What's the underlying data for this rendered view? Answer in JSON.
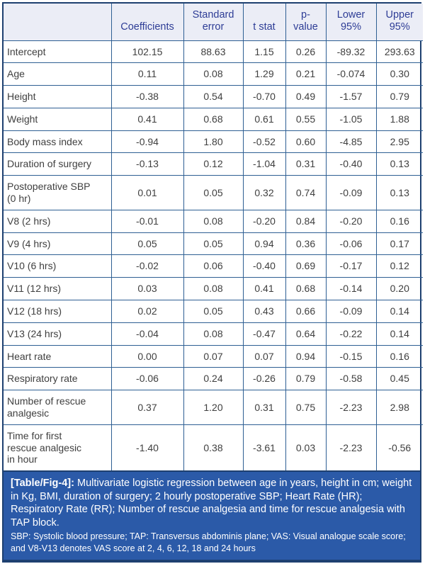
{
  "colors": {
    "inner_border": "#2e5f93",
    "outer_border": "#1e4070",
    "header_bg": "#ebedf6",
    "header_text": "#2e3d96",
    "body_text": "#3f3f3f",
    "caption_bg": "#2b5aa8",
    "caption_text": "#ffffff"
  },
  "table": {
    "corner_label": "",
    "headers": [
      "Coefficients",
      "Standard\nerror",
      "t stat",
      "p-\nvalue",
      "Lower\n95%",
      "Upper\n95%"
    ],
    "rows": [
      {
        "label": "Intercept",
        "values": [
          "102.15",
          "88.63",
          "1.15",
          "0.26",
          "-89.32",
          "293.63"
        ]
      },
      {
        "label": "Age",
        "values": [
          "0.11",
          "0.08",
          "1.29",
          "0.21",
          "-0.074",
          "0.30"
        ]
      },
      {
        "label": "Height",
        "values": [
          "-0.38",
          "0.54",
          "-0.70",
          "0.49",
          "-1.57",
          "0.79"
        ]
      },
      {
        "label": "Weight",
        "values": [
          "0.41",
          "0.68",
          "0.61",
          "0.55",
          "-1.05",
          "1.88"
        ]
      },
      {
        "label": "Body mass index",
        "values": [
          "-0.94",
          "1.80",
          "-0.52",
          "0.60",
          "-4.85",
          "2.95"
        ]
      },
      {
        "label": "Duration of surgery",
        "values": [
          "-0.13",
          "0.12",
          "-1.04",
          "0.31",
          "-0.40",
          "0.13"
        ]
      },
      {
        "label": "Postoperative SBP\n(0 hr)",
        "values": [
          "0.01",
          "0.05",
          "0.32",
          "0.74",
          "-0.09",
          "0.13"
        ]
      },
      {
        "label": "V8 (2 hrs)",
        "values": [
          "-0.01",
          "0.08",
          "-0.20",
          "0.84",
          "-0.20",
          "0.16"
        ]
      },
      {
        "label": "V9 (4 hrs)",
        "values": [
          "0.05",
          "0.05",
          "0.94",
          "0.36",
          "-0.06",
          "0.17"
        ]
      },
      {
        "label": "V10 (6 hrs)",
        "values": [
          "-0.02",
          "0.06",
          "-0.40",
          "0.69",
          "-0.17",
          "0.12"
        ]
      },
      {
        "label": "V11 (12 hrs)",
        "values": [
          "0.03",
          "0.08",
          "0.41",
          "0.68",
          "-0.14",
          "0.20"
        ]
      },
      {
        "label": "V12 (18 hrs)",
        "values": [
          "0.02",
          "0.05",
          "0.43",
          "0.66",
          "-0.09",
          "0.14"
        ]
      },
      {
        "label": "V13 (24 hrs)",
        "values": [
          "-0.04",
          "0.08",
          "-0.47",
          "0.64",
          "-0.22",
          "0.14"
        ]
      },
      {
        "label": "Heart rate",
        "values": [
          "0.00",
          "0.07",
          "0.07",
          "0.94",
          "-0.15",
          "0.16"
        ]
      },
      {
        "label": "Respiratory rate",
        "values": [
          "-0.06",
          "0.24",
          "-0.26",
          "0.79",
          "-0.58",
          "0.45"
        ]
      },
      {
        "label": "Number of rescue\nanalgesic",
        "values": [
          "0.37",
          "1.20",
          "0.31",
          "0.75",
          "-2.23",
          "2.98"
        ]
      },
      {
        "label": "Time for first\nrescue analgesic\nin hour",
        "values": [
          "-1.40",
          "0.38",
          "-3.61",
          "0.03",
          "-2.23",
          "-0.56"
        ]
      }
    ]
  },
  "footer": {
    "label": "[Table/Fig-4]:",
    "caption": "Multivariate logistic regression between age in years, height in cm; weight in Kg, BMI, duration of surgery; 2 hourly postoperative SBP; Heart Rate (HR); Respiratory Rate (RR); Number of rescue analgesia and time for rescue analgesia with TAP block.",
    "footnote": "SBP: Systolic blood pressure; TAP: Transversus abdominis plane; VAS: Visual analogue scale score; and V8-V13 denotes VAS score at 2, 4, 6, 12, 18 and 24 hours"
  }
}
